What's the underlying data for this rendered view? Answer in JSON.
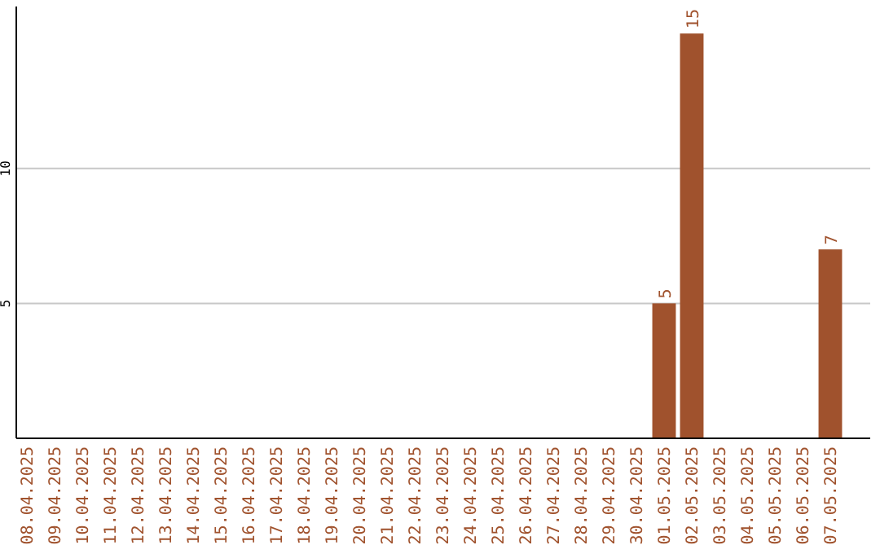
{
  "chart_data": {
    "type": "bar",
    "categories": [
      "08.04.2025",
      "09.04.2025",
      "10.04.2025",
      "11.04.2025",
      "12.04.2025",
      "13.04.2025",
      "14.04.2025",
      "15.04.2025",
      "16.04.2025",
      "17.04.2025",
      "18.04.2025",
      "19.04.2025",
      "20.04.2025",
      "21.04.2025",
      "22.04.2025",
      "23.04.2025",
      "24.04.2025",
      "25.04.2025",
      "26.04.2025",
      "27.04.2025",
      "28.04.2025",
      "29.04.2025",
      "30.04.2025",
      "01.05.2025",
      "02.05.2025",
      "03.05.2025",
      "04.05.2025",
      "05.05.2025",
      "06.05.2025",
      "07.05.2025"
    ],
    "values": [
      0,
      0,
      0,
      0,
      0,
      0,
      0,
      0,
      0,
      0,
      0,
      0,
      0,
      0,
      0,
      0,
      0,
      0,
      0,
      0,
      0,
      0,
      0,
      5,
      15,
      0,
      0,
      0,
      0,
      7
    ],
    "value_labels": [
      null,
      null,
      null,
      null,
      null,
      null,
      null,
      null,
      null,
      null,
      null,
      null,
      null,
      null,
      null,
      null,
      null,
      null,
      null,
      null,
      null,
      null,
      null,
      "5",
      "15",
      null,
      null,
      null,
      null,
      "7"
    ],
    "color": "#a0522d",
    "ylim": [
      0,
      16
    ],
    "yticks": [
      5,
      10
    ],
    "grid": "y"
  }
}
